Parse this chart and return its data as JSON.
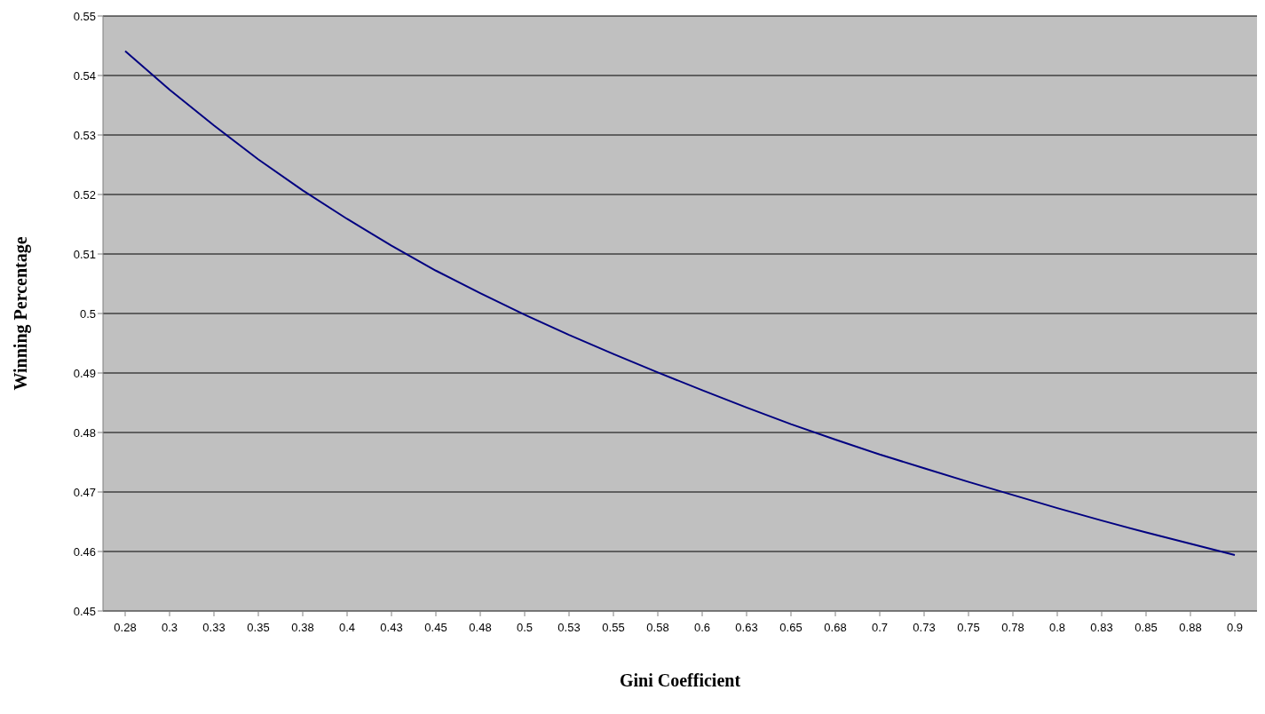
{
  "chart_data": {
    "type": "line",
    "xlabel": "Gini Coefficient",
    "ylabel": "Winning Percentage",
    "categories": [
      "0.28",
      "0.3",
      "0.33",
      "0.35",
      "0.38",
      "0.4",
      "0.43",
      "0.45",
      "0.48",
      "0.5",
      "0.53",
      "0.55",
      "0.58",
      "0.6",
      "0.63",
      "0.65",
      "0.68",
      "0.7",
      "0.73",
      "0.75",
      "0.78",
      "0.8",
      "0.83",
      "0.85",
      "0.88",
      "0.9"
    ],
    "series": [
      {
        "color": "#000080",
        "values": [
          0.5441,
          0.5376,
          0.5316,
          0.5259,
          0.5207,
          0.5159,
          0.5114,
          0.5072,
          0.5034,
          0.4998,
          0.4964,
          0.4932,
          0.4901,
          0.4871,
          0.4842,
          0.4814,
          0.4788,
          0.4763,
          0.474,
          0.4717,
          0.4695,
          0.4673,
          0.4652,
          0.4632,
          0.4613,
          0.4594
        ]
      }
    ],
    "ylim": [
      0.45,
      0.55
    ],
    "yticks": [
      0.45,
      0.46,
      0.47,
      0.48,
      0.49,
      0.5,
      0.51,
      0.52,
      0.53,
      0.54,
      0.55
    ],
    "grid": "y",
    "marker": "none",
    "line_style": "solid"
  }
}
